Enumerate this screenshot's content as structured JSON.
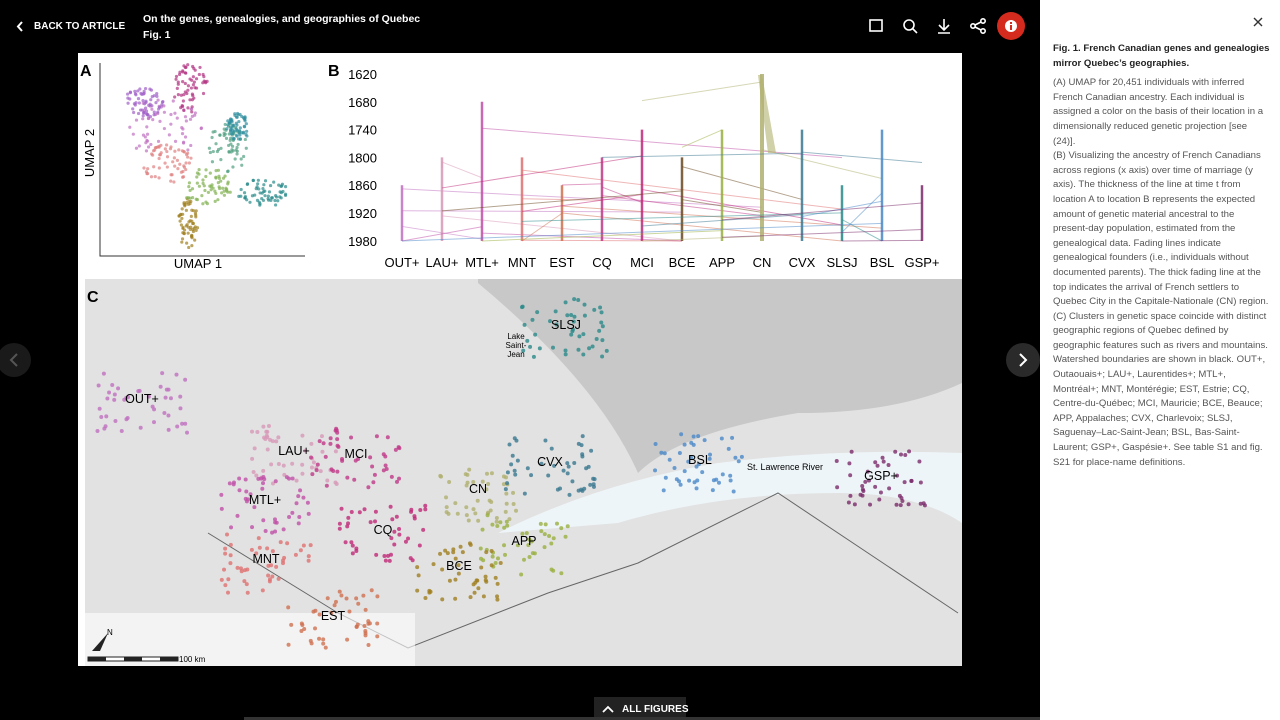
{
  "header": {
    "back_label": "BACK TO ARTICLE",
    "article_title": "On the genes, genealogies, and geographies of Quebec",
    "figure_label": "Fig. 1"
  },
  "figure": {
    "panel_a": {
      "label": "A",
      "x_label": "UMAP 1",
      "y_label": "UMAP 2"
    },
    "panel_b": {
      "label": "B",
      "years": [
        "1620",
        "1680",
        "1740",
        "1800",
        "1860",
        "1920",
        "1980"
      ],
      "regions": [
        "OUT+",
        "LAU+",
        "MTL+",
        "MNT",
        "EST",
        "CQ",
        "MCI",
        "BCE",
        "APP",
        "CN",
        "CVX",
        "SLSJ",
        "BSL",
        "GSP+"
      ]
    },
    "panel_c": {
      "label": "C",
      "places": [
        "SLSJ",
        "OUT+",
        "LAU+",
        "MCI",
        "CN",
        "CVX",
        "BSL",
        "GSP+",
        "MTL+",
        "CQ",
        "APP",
        "MNT",
        "BCE",
        "EST"
      ],
      "lake_lines": [
        "Lake",
        "Saint-",
        "Jean"
      ],
      "river": "St. Lawrence River",
      "north": "N",
      "scale": "100 km"
    }
  },
  "sidebar": {
    "caption_title": "Fig. 1. French Canadian genes and genealogies mirror Quebec’s geographies.",
    "paragraphs": [
      "(A) UMAP for 20,451 individuals with inferred French Canadian ancestry. Each individual is assigned a color on the basis of their location in a dimensionally reduced genetic projection [see (24)].",
      "(B) Visualizing the ancestry of French Canadians across regions (x axis) over time of marriage (y axis). The thickness of the line at time t from location A to location B represents the expected amount of genetic material ancestral to the present-day population, estimated from the genealogical data. Fading lines indicate genealogical founders (i.e., individuals without documented parents). The thick fading line at the top indicates the arrival of French settlers to Quebec City in the Capitale-Nationale (CN) region.",
      "(C) Clusters in genetic space coincide with distinct geographic regions of Quebec defined by geographic features such as rivers and mountains. Watershed boundaries are shown in black. OUT+, Outaouais+; LAU+, Laurentides+; MTL+, Montréal+; MNT, Montérégie; EST, Estrie; CQ, Centre-du-Québec; MCI, Mauricie; BCE, Beauce; APP, Appalaches; CVX, Charlevoix; SLSJ, Saguenay–Lac-Saint-Jean; BSL, Bas-Saint-Laurent; GSP+, Gaspésie+. See table S1 and fig. S21 for place-name definitions."
    ]
  },
  "footer": {
    "all_figures": "ALL FIGURES"
  }
}
